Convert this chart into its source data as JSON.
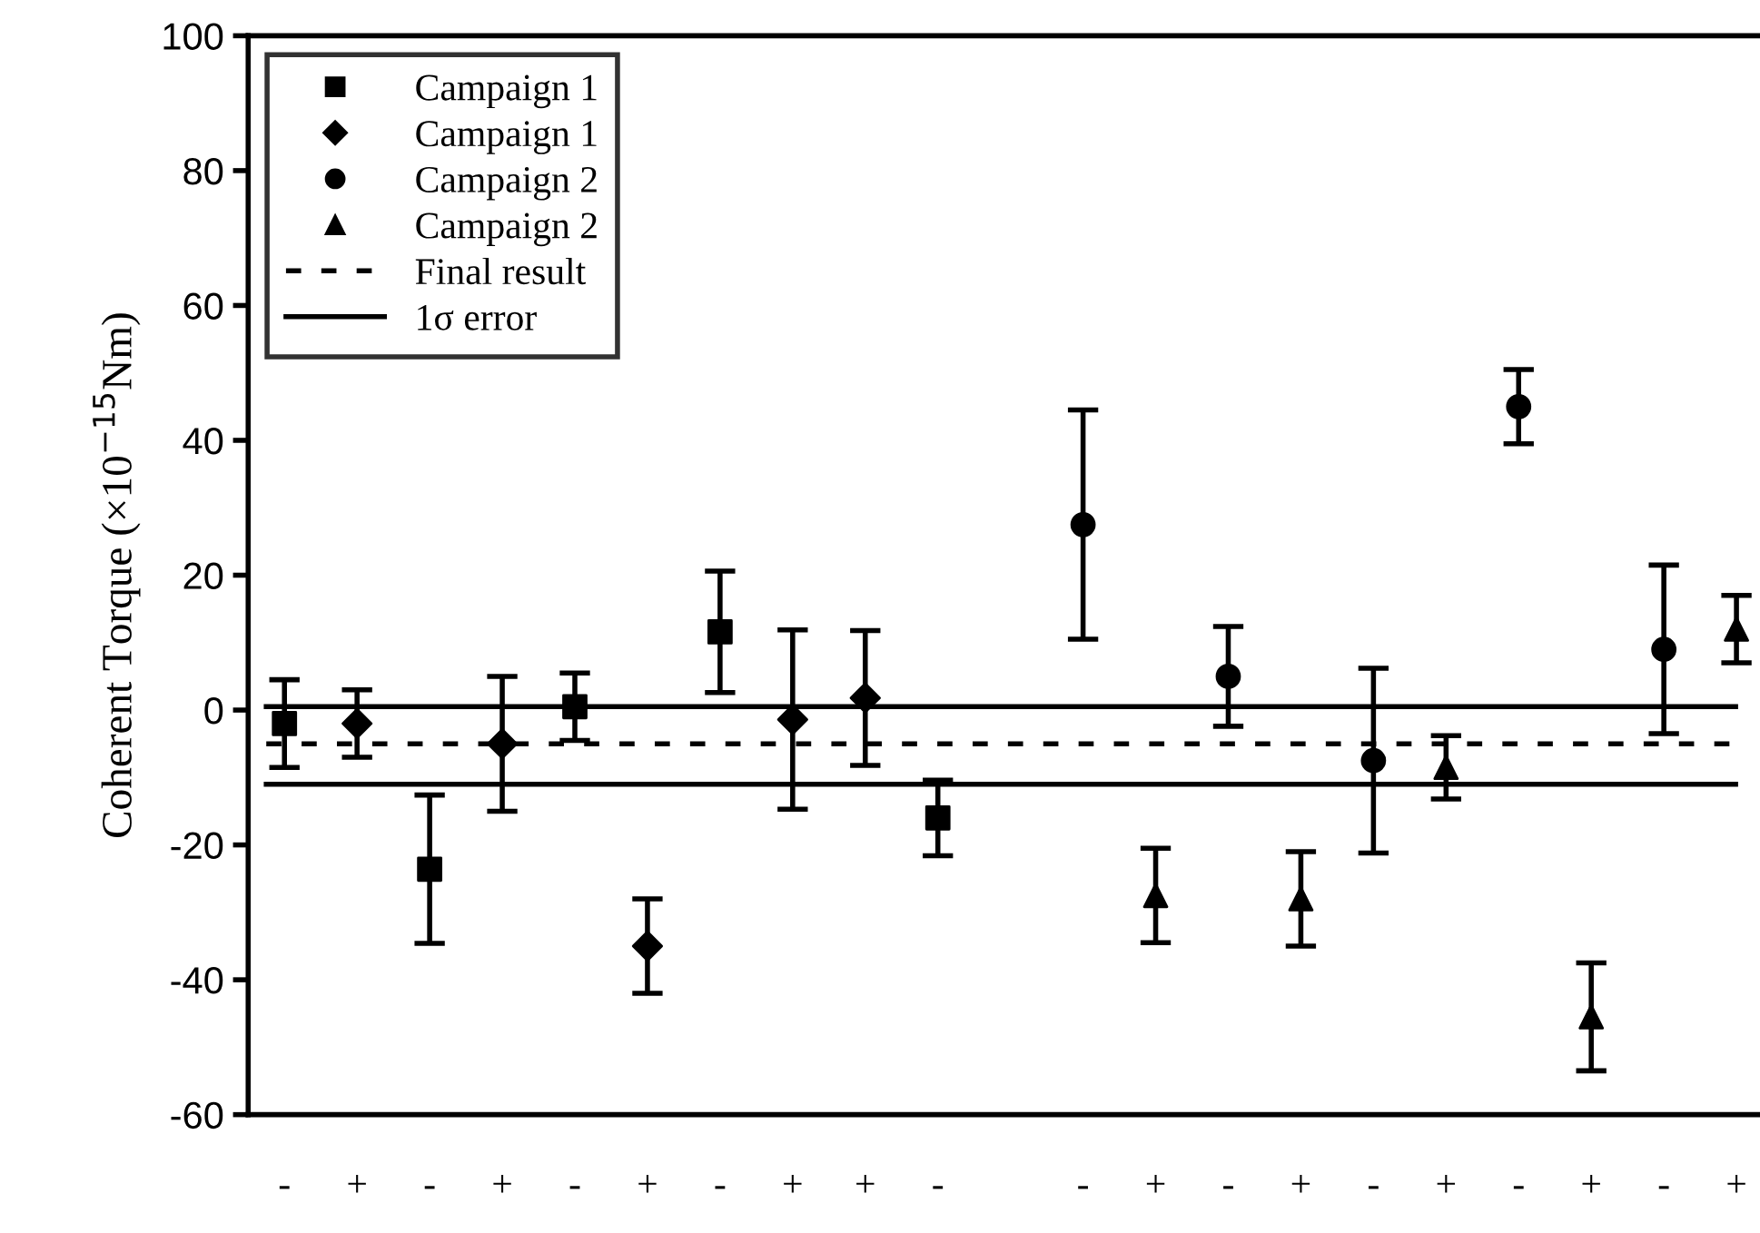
{
  "chart_data": {
    "type": "scatter",
    "ylabel": "Coherent Torque (×10$^{−15}$Nm)",
    "categories": [
      "-",
      "+",
      "-",
      "+",
      "-",
      "+",
      "-",
      "+",
      "+",
      "-",
      null,
      "-",
      "+",
      "-",
      "+",
      "-",
      "+",
      "-",
      "+",
      "-",
      "+"
    ],
    "ylim": [
      -60,
      100
    ],
    "yticks": [
      -60,
      -40,
      -20,
      0,
      20,
      40,
      60,
      80,
      100
    ],
    "grid": false,
    "legend": "top left",
    "series": [
      {
        "name": "Campaign 1",
        "color": "#000000",
        "marker": "square",
        "values": [
          -2,
          null,
          -23.6,
          null,
          0.5,
          null,
          11.6,
          null,
          null,
          -16,
          null,
          null,
          null,
          null,
          null,
          null,
          null,
          null,
          null,
          null,
          null
        ],
        "errors": [
          6.5,
          null,
          11,
          null,
          5,
          null,
          9,
          null,
          null,
          5.6,
          null,
          null,
          null,
          null,
          null,
          null,
          null,
          null,
          null,
          null,
          null
        ]
      },
      {
        "name": "Campaign 1",
        "color": "#000000",
        "marker": "diamond",
        "values": [
          null,
          -2,
          null,
          -5,
          null,
          -35,
          null,
          -1.4,
          1.8,
          null,
          null,
          null,
          null,
          null,
          null,
          null,
          null,
          null,
          null,
          null,
          null
        ],
        "errors": [
          null,
          5,
          null,
          10,
          null,
          7,
          null,
          13.3,
          10,
          null,
          null,
          null,
          null,
          null,
          null,
          null,
          null,
          null,
          null,
          null,
          null
        ]
      },
      {
        "name": "Campaign 2",
        "color": "#000000",
        "marker": "circle",
        "values": [
          null,
          null,
          null,
          null,
          null,
          null,
          null,
          null,
          null,
          null,
          null,
          27.5,
          null,
          5,
          null,
          -7.5,
          null,
          45,
          null,
          9,
          null
        ],
        "errors": [
          null,
          null,
          null,
          null,
          null,
          null,
          null,
          null,
          null,
          null,
          null,
          17,
          null,
          7.4,
          null,
          13.7,
          null,
          5.5,
          null,
          12.5,
          null
        ]
      },
      {
        "name": "Campaign 2",
        "color": "#000000",
        "marker": "triangle",
        "values": [
          null,
          null,
          null,
          null,
          null,
          null,
          null,
          null,
          null,
          null,
          null,
          null,
          -27.5,
          null,
          -28,
          null,
          -8.5,
          null,
          -45.5,
          null,
          12
        ],
        "errors": [
          null,
          null,
          null,
          null,
          null,
          null,
          null,
          null,
          null,
          null,
          null,
          null,
          7,
          null,
          7,
          null,
          4.7,
          null,
          8,
          null,
          5
        ]
      }
    ],
    "ref_lines": [
      {
        "axis": "y",
        "value": -5,
        "label": "Final result",
        "color": "#000000",
        "line_style": "dashed"
      },
      {
        "axis": "y",
        "value": 0.5,
        "label": "1σ error",
        "color": "#000000",
        "line_style": "solid"
      },
      {
        "axis": "y",
        "value": -11,
        "color": "#000000",
        "line_style": "solid"
      }
    ]
  }
}
